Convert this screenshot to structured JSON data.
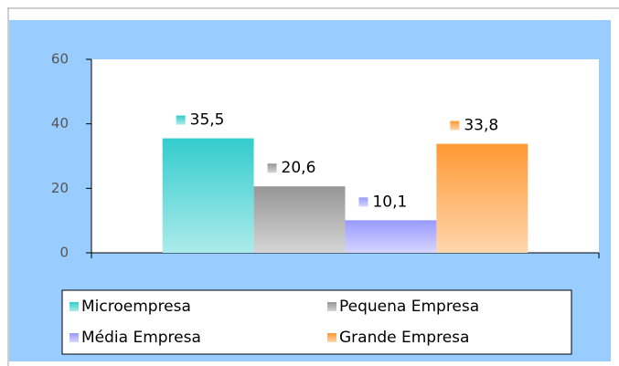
{
  "chart_data": {
    "type": "bar",
    "categories": [
      null
    ],
    "series": [
      {
        "name": "Microempresa",
        "color": "#33cccc",
        "values": [
          35.5
        ],
        "value_labels": [
          "35,5"
        ]
      },
      {
        "name": "Pequena Empresa",
        "color": "#969696",
        "values": [
          20.6
        ],
        "value_labels": [
          "20,6"
        ]
      },
      {
        "name": "Média Empresa",
        "color": "#9999ff",
        "values": [
          10.1
        ],
        "value_labels": [
          "10,1"
        ]
      },
      {
        "name": "Grande Empresa",
        "color": "#ff9933",
        "values": [
          33.8
        ],
        "value_labels": [
          "33,8"
        ]
      }
    ],
    "ylim": [
      0,
      60
    ],
    "yticks": [
      0,
      20,
      40,
      60
    ],
    "grid": false,
    "legend": "bottom"
  }
}
